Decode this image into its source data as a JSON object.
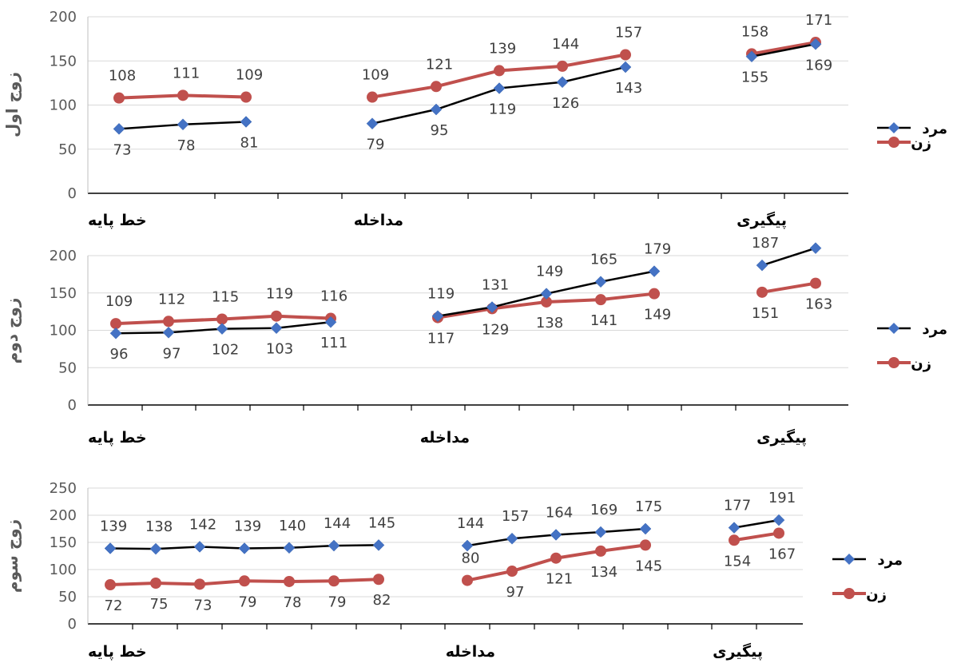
{
  "legend": {
    "men": "مرد",
    "women": "زن"
  },
  "colors": {
    "men_line": "#000000",
    "men_marker": "#4472C4",
    "women": "#C0504D",
    "grid": "#D9D9D9",
    "axis": "#000000"
  },
  "chart_data": [
    {
      "type": "line",
      "ylabel": "زوج اول",
      "ylim": [
        0,
        200
      ],
      "yticks": [
        0,
        50,
        100,
        150,
        200
      ],
      "phases": [
        "خط پایه",
        "مداخله",
        "پیگیری"
      ],
      "series": [
        {
          "name": "مرد",
          "segments": [
            [
              73,
              78,
              81
            ],
            [
              79,
              95,
              119,
              126,
              143
            ],
            [
              155,
              169
            ]
          ]
        },
        {
          "name": "زن",
          "segments": [
            [
              108,
              111,
              109
            ],
            [
              109,
              121,
              139,
              144,
              157
            ],
            [
              158,
              171
            ]
          ]
        }
      ]
    },
    {
      "type": "line",
      "ylabel": "زوج دوم",
      "ylim": [
        0,
        200
      ],
      "yticks": [
        0,
        50,
        100,
        150,
        200
      ],
      "phases": [
        "خط پایه",
        "مداخله",
        "پیگیری"
      ],
      "series": [
        {
          "name": "مرد",
          "segments": [
            [
              96,
              97,
              102,
              103,
              111
            ],
            [
              119,
              131,
              149,
              165,
              179
            ],
            [
              187,
              210
            ]
          ]
        },
        {
          "name": "زن",
          "segments": [
            [
              109,
              112,
              115,
              119,
              116
            ],
            [
              117,
              129,
              138,
              141,
              149
            ],
            [
              151,
              163
            ]
          ]
        }
      ],
      "labels": {
        "men": [
          [
            "96",
            "97",
            "102",
            "103",
            "111"
          ],
          [
            "119",
            "131",
            "149",
            "165",
            "179"
          ],
          [
            "187",
            ""
          ]
        ],
        "women": [
          [
            "109",
            "112",
            "115",
            "119",
            "116"
          ],
          [
            "117",
            "129",
            "138",
            "141",
            "149"
          ],
          [
            "151",
            "163"
          ]
        ]
      }
    },
    {
      "type": "line",
      "ylabel": "زوج سوم",
      "ylim": [
        0,
        250
      ],
      "yticks": [
        0,
        50,
        100,
        150,
        200,
        250
      ],
      "phases": [
        "خط پایه",
        "مداخله",
        "پیگیری"
      ],
      "series": [
        {
          "name": "مرد",
          "segments": [
            [
              139,
              138,
              142,
              139,
              140,
              144,
              145
            ],
            [
              144,
              157,
              164,
              169,
              175
            ],
            [
              177,
              191
            ]
          ]
        },
        {
          "name": "زن",
          "segments": [
            [
              72,
              75,
              73,
              79,
              78,
              79,
              82
            ],
            [
              80,
              97,
              121,
              134,
              145
            ],
            [
              154,
              167
            ]
          ]
        }
      ]
    }
  ]
}
